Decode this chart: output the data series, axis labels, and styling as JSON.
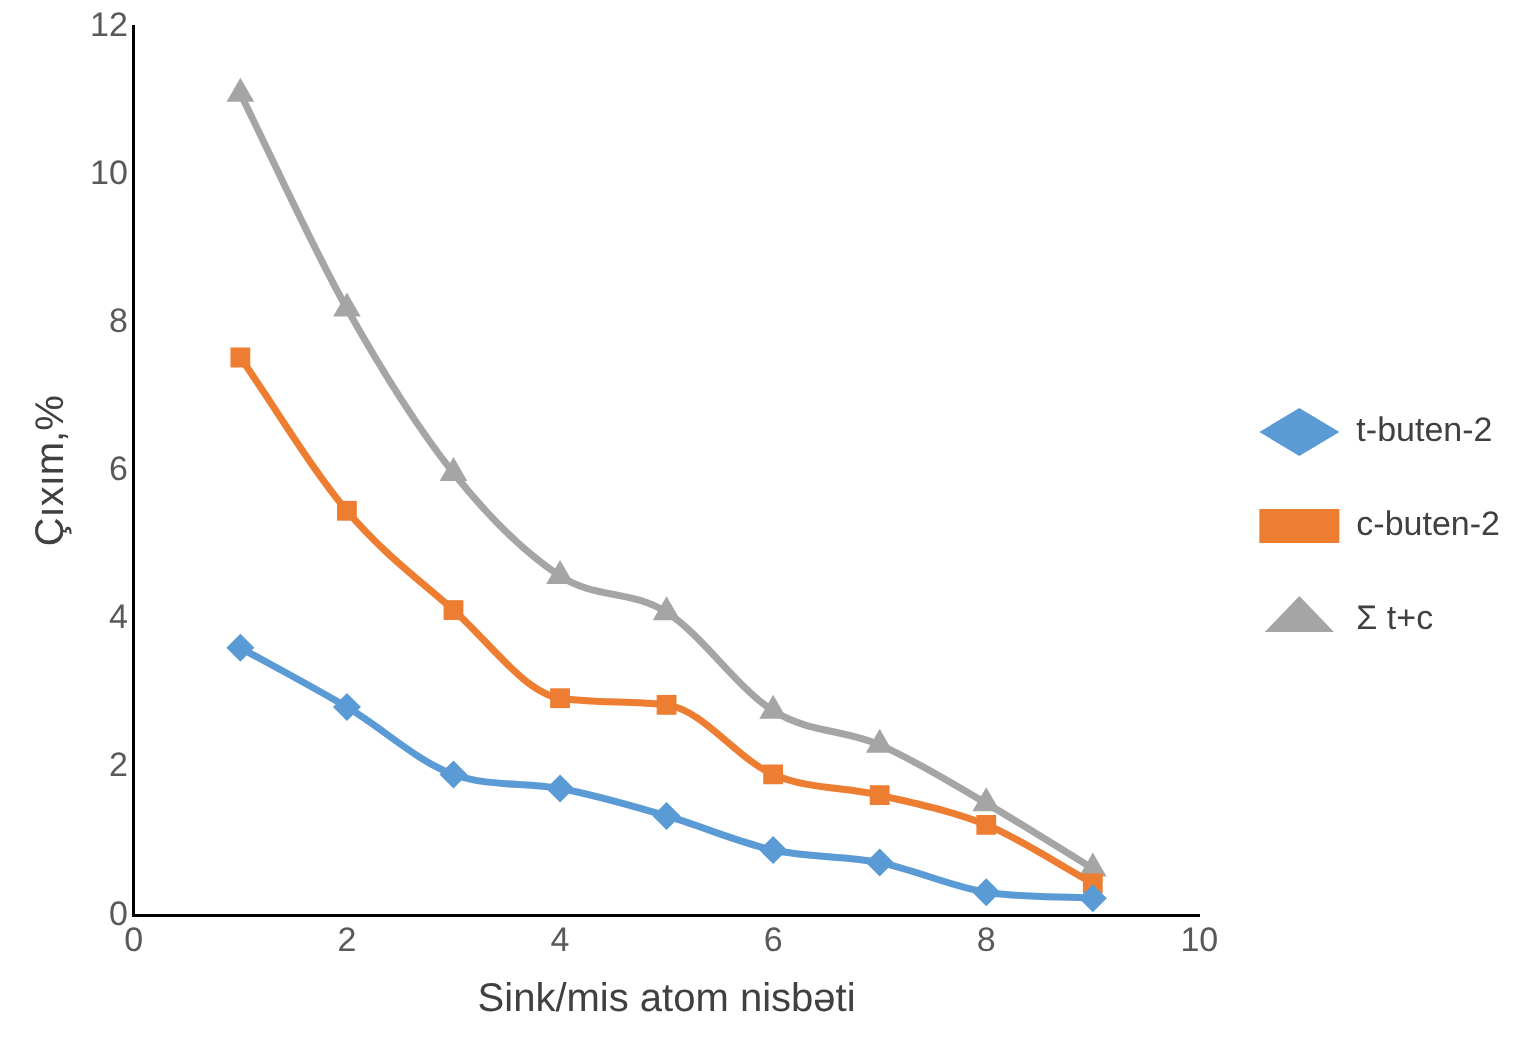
{
  "chart_data": {
    "type": "line",
    "xlabel": "Sink/mis atom nisbəti",
    "ylabel": "Çıxım,%",
    "x": [
      1,
      2,
      3,
      4,
      5,
      6,
      7,
      8,
      9
    ],
    "series": [
      {
        "name": "t-buten-2",
        "color": "#5b9bd5",
        "marker": "diamond",
        "values": [
          3.61,
          2.81,
          1.9,
          1.71,
          1.34,
          0.88,
          0.71,
          0.31,
          0.23
        ]
      },
      {
        "name": "c-buten-2",
        "color": "#ed7d31",
        "marker": "square",
        "values": [
          7.53,
          5.46,
          4.12,
          2.93,
          2.84,
          1.9,
          1.62,
          1.22,
          0.43
        ]
      },
      {
        "name": "Σ t+c",
        "color": "#a5a5a5",
        "marker": "triangle",
        "values": [
          11.09,
          8.19,
          5.97,
          4.58,
          4.09,
          2.76,
          2.3,
          1.51,
          0.63
        ]
      }
    ],
    "xlim": [
      0,
      10
    ],
    "xticks": [
      0,
      2,
      4,
      6,
      8,
      10
    ],
    "ylim": [
      0,
      12
    ],
    "yticks": [
      0,
      2,
      4,
      6,
      8,
      10,
      12
    ],
    "grid": false,
    "legend": "right",
    "line_style": "solid"
  }
}
